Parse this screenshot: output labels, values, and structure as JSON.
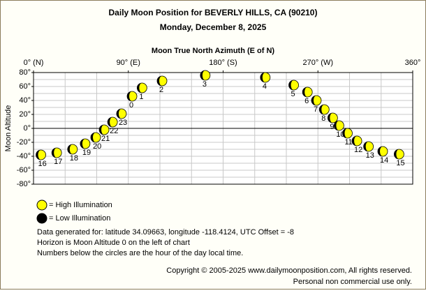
{
  "chart_data": {
    "type": "scatter",
    "title": "Daily Moon Position for BEVERLY HILLS, CA (90210)",
    "subtitle": "Monday, December 8, 2025",
    "x_label": "Moon True North Azimuth (E of N)",
    "y_label": "Moon Altitude",
    "xlim": [
      0,
      360
    ],
    "xticks": [
      {
        "value": 0,
        "label": "0° (N)"
      },
      {
        "value": 90,
        "label": "90° (E)"
      },
      {
        "value": 180,
        "label": "180° (S)"
      },
      {
        "value": 270,
        "label": "270° (W)"
      },
      {
        "value": 360,
        "label": "360°"
      }
    ],
    "ylim": [
      -80,
      80
    ],
    "yticks": [
      {
        "value": 80,
        "label": "80°"
      },
      {
        "value": 60,
        "label": "60°"
      },
      {
        "value": 40,
        "label": "40°"
      },
      {
        "value": 20,
        "label": "20°"
      },
      {
        "value": 0,
        "label": "0°"
      },
      {
        "value": -20,
        "label": "-20°"
      },
      {
        "value": -40,
        "label": "-40°"
      },
      {
        "value": -60,
        "label": "-60°"
      },
      {
        "value": -80,
        "label": "-80°"
      }
    ],
    "grid": true,
    "series": [
      {
        "color": "#ffff00",
        "labels": [
          "0",
          "1",
          "2",
          "3",
          "4",
          "5",
          "6",
          "7",
          "8",
          "9",
          "10",
          "11",
          "12",
          "13",
          "14",
          "15",
          "16",
          "17",
          "18",
          "19",
          "20",
          "21",
          "22",
          "23"
        ],
        "x": [
          93.5,
          103,
          122,
          163,
          220,
          247,
          260,
          268.5,
          276,
          284,
          290,
          298,
          307,
          318,
          331.5,
          347,
          7,
          22,
          37,
          49,
          59,
          67,
          75,
          83.5
        ],
        "values": [
          46,
          58,
          68,
          76,
          73,
          62,
          52,
          40,
          27,
          15,
          4,
          -7,
          -18,
          -26,
          -33,
          -37,
          -38,
          -35,
          -30,
          -22,
          -13,
          -2,
          9,
          21
        ]
      }
    ],
    "legend": [
      {
        "name": "= High Illumination",
        "color": "#ffff00"
      },
      {
        "name": "= Low Illumination",
        "color": "#000000"
      }
    ],
    "notes": [
      "Data generated for: latitude 34.09663, longitude -118.4124, UTC Offset = -8",
      "Horizon is Moon Altitude 0 on the left of chart",
      "Numbers below the circles are the hour of the day local time."
    ],
    "copyright": [
      "Copyright © 2005-2025 www.dailymoonposition.com, All rights reserved.",
      "Personal non commercial use only."
    ]
  }
}
